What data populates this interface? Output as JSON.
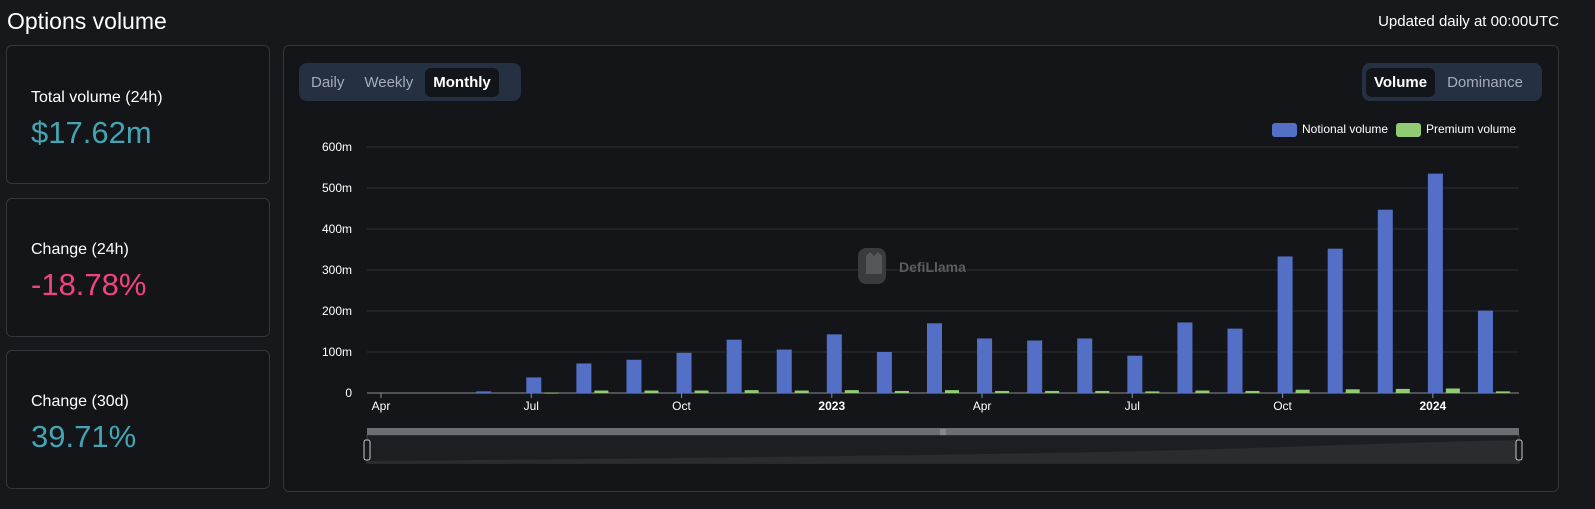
{
  "header": {
    "title": "Options volume",
    "updated_note": "Updated daily at 00:00UTC"
  },
  "stats": [
    {
      "label": "Total volume (24h)",
      "value": "$17.62m",
      "color": "#43a5b3"
    },
    {
      "label": "Change (24h)",
      "value": "-18.78%",
      "color": "#f0437d"
    },
    {
      "label": "Change (30d)",
      "value": "39.71%",
      "color": "#43a5b3"
    }
  ],
  "period_tabs": {
    "items": [
      "Daily",
      "Weekly",
      "Monthly"
    ],
    "active": "Monthly"
  },
  "metric_tabs": {
    "items": [
      "Volume",
      "Dominance"
    ],
    "active": "Volume"
  },
  "watermark": "DefiLlama",
  "chart_data": {
    "type": "bar",
    "categories": [
      "2022-04",
      "2022-05",
      "2022-06",
      "2022-07",
      "2022-08",
      "2022-09",
      "2022-10",
      "2022-11",
      "2022-12",
      "2023-01",
      "2023-02",
      "2023-03",
      "2023-04",
      "2023-05",
      "2023-06",
      "2023-07",
      "2023-08",
      "2023-09",
      "2023-10",
      "2023-11",
      "2023-12",
      "2024-01",
      "2024-02"
    ],
    "x_tick_labels": [
      {
        "index": 0,
        "label": "Apr",
        "bold": false
      },
      {
        "index": 3,
        "label": "Jul",
        "bold": false
      },
      {
        "index": 6,
        "label": "Oct",
        "bold": false
      },
      {
        "index": 9,
        "label": "2023",
        "bold": true
      },
      {
        "index": 12,
        "label": "Apr",
        "bold": false
      },
      {
        "index": 15,
        "label": "Jul",
        "bold": false
      },
      {
        "index": 18,
        "label": "Oct",
        "bold": false
      },
      {
        "index": 21,
        "label": "2024",
        "bold": true
      }
    ],
    "series": [
      {
        "name": "Notional volume",
        "color": "#5470c6",
        "values": [
          0,
          0,
          4,
          38,
          72,
          81,
          98,
          130,
          106,
          143,
          100,
          170,
          133,
          128,
          133,
          91,
          172,
          157,
          333,
          352,
          447,
          535,
          201
        ]
      },
      {
        "name": "Premium volume",
        "color": "#91cc75",
        "values": [
          0,
          0,
          0,
          1,
          6,
          6,
          6,
          7,
          6,
          7,
          5,
          7,
          5,
          5,
          5,
          4,
          6,
          5,
          8,
          9,
          10,
          11,
          4
        ]
      }
    ],
    "yticks": [
      "0",
      "100m",
      "200m",
      "300m",
      "400m",
      "500m",
      "600m"
    ],
    "ylim": [
      0,
      600
    ],
    "y_unit": "millions USD",
    "grid": true,
    "legend_position": "top-right"
  }
}
